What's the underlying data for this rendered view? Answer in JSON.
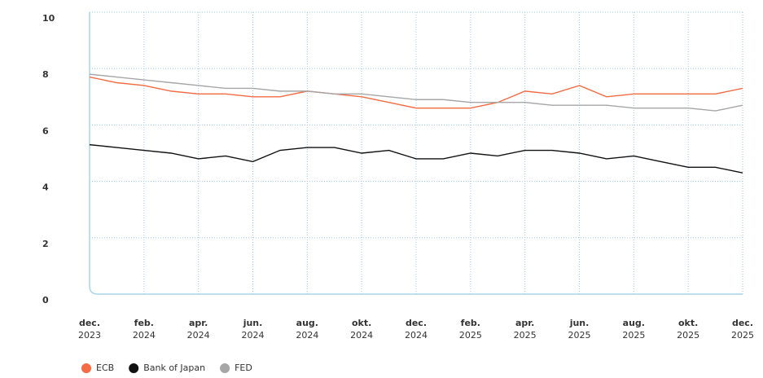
{
  "chart_data": {
    "type": "line",
    "categories": [
      [
        "dec.",
        "2023"
      ],
      null,
      [
        "feb.",
        "2024"
      ],
      null,
      [
        "apr.",
        "2024"
      ],
      null,
      [
        "jun.",
        "2024"
      ],
      null,
      [
        "aug.",
        "2024"
      ],
      null,
      [
        "okt.",
        "2024"
      ],
      null,
      [
        "dec.",
        "2024"
      ],
      null,
      [
        "feb.",
        "2025"
      ],
      null,
      [
        "apr.",
        "2025"
      ],
      null,
      [
        "jun.",
        "2025"
      ],
      null,
      [
        "aug.",
        "2025"
      ],
      null,
      [
        "okt.",
        "2025"
      ],
      null,
      [
        "dec.",
        "2025"
      ]
    ],
    "series": [
      {
        "name": "ECB",
        "color": "#f26b43",
        "values": [
          7.7,
          7.5,
          7.4,
          7.2,
          7.1,
          7.1,
          7.0,
          7.0,
          7.2,
          7.1,
          7.0,
          6.8,
          6.6,
          6.6,
          6.6,
          6.8,
          7.2,
          7.1,
          7.4,
          7.0,
          7.1,
          7.1,
          7.1,
          7.1,
          7.3
        ]
      },
      {
        "name": "Bank of Japan",
        "color": "#111111",
        "values": [
          5.3,
          5.2,
          5.1,
          5.0,
          4.8,
          4.9,
          4.7,
          5.1,
          5.2,
          5.2,
          5.0,
          5.1,
          4.8,
          4.8,
          5.0,
          4.9,
          5.1,
          5.1,
          5.0,
          4.8,
          4.9,
          4.7,
          4.5,
          4.5,
          4.3
        ]
      },
      {
        "name": "FED",
        "color": "#a6a6a6",
        "values": [
          7.8,
          7.7,
          7.6,
          7.5,
          7.4,
          7.3,
          7.3,
          7.2,
          7.2,
          7.1,
          7.1,
          7.0,
          6.9,
          6.9,
          6.8,
          6.8,
          6.8,
          6.7,
          6.7,
          6.7,
          6.6,
          6.6,
          6.6,
          6.5,
          6.7
        ]
      }
    ],
    "ylim": [
      0,
      10
    ],
    "yticks": [
      0,
      2,
      4,
      6,
      8,
      10
    ],
    "grid": true,
    "legend": "bottom"
  }
}
